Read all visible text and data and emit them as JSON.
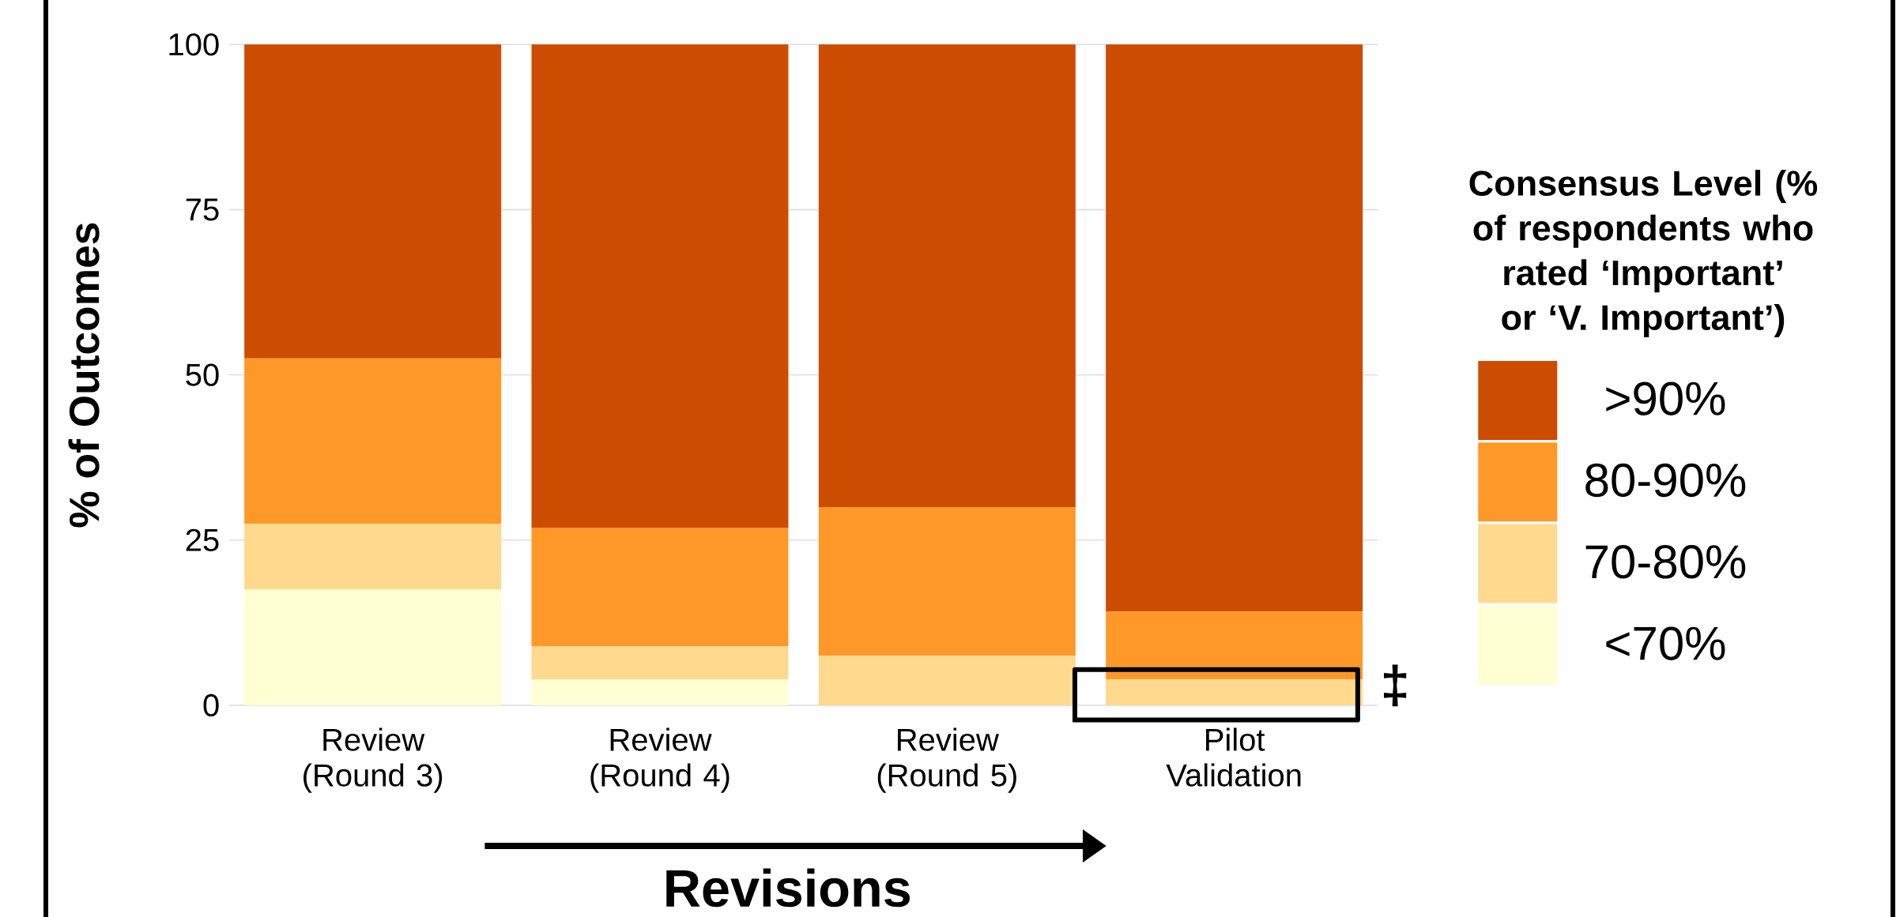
{
  "chart_data": {
    "type": "bar",
    "stacked": true,
    "categories": [
      "Review (Round 3)",
      "Review (Round 4)",
      "Review (Round 5)",
      "Pilot Validation"
    ],
    "series": [
      {
        "name": "<70%",
        "color": "#ffffd4",
        "values": [
          17.5,
          3.9,
          0,
          0
        ]
      },
      {
        "name": "70-80%",
        "color": "#fed98e",
        "values": [
          10,
          5,
          7.5,
          3.9
        ]
      },
      {
        "name": "80-90%",
        "color": "#fe9929",
        "values": [
          25,
          18,
          22.5,
          10.3
        ]
      },
      {
        "name": ">90%",
        "color": "#cc4c02",
        "values": [
          47.5,
          73.1,
          70,
          85.8
        ]
      }
    ],
    "ylim": [
      0,
      100
    ],
    "yticks": [
      0,
      25,
      50,
      75,
      100
    ],
    "grid": "y",
    "ylabel": "% of Outcomes",
    "xlabel": "Revisions",
    "legend": "right",
    "legend_title": "Consensus Level (% of respondents who rated ‘Important’ or ‘V. Important’)",
    "annotations": [
      "‡"
    ]
  }
}
